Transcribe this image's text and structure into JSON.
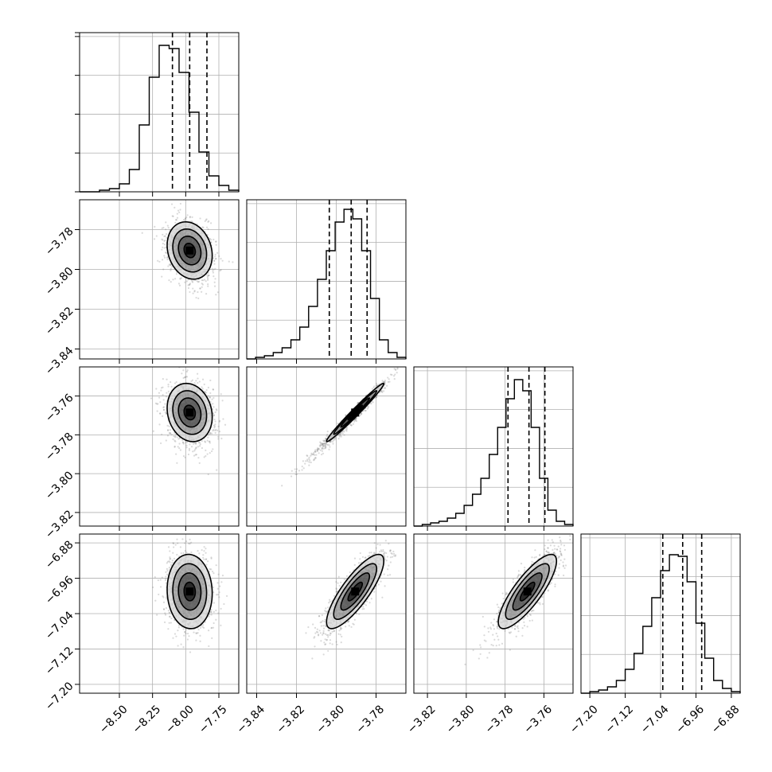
{
  "chart_data": {
    "type": "corner",
    "grid": true,
    "dimensions": [
      {
        "range": [
          -8.8,
          -7.6
        ],
        "ticks": [
          -8.5,
          -8.25,
          -8.0,
          -7.75
        ],
        "tick_labels": [
          "−8.50",
          "−8.25",
          "−8.00",
          "−7.75"
        ],
        "quantiles": [
          -8.1,
          -7.97,
          -7.84
        ],
        "hist_density": [
          0,
          0,
          0.01,
          0.02,
          0.05,
          0.14,
          0.42,
          0.72,
          0.92,
          0.9,
          0.75,
          0.5,
          0.25,
          0.1,
          0.04,
          0.01
        ]
      },
      {
        "range": [
          -3.845,
          -3.765
        ],
        "ticks": [
          -3.84,
          -3.82,
          -3.8,
          -3.78
        ],
        "tick_labels": [
          "−3.84",
          "−3.82",
          "−3.80",
          "−3.78"
        ],
        "quantiles": [
          -3.8035,
          -3.7925,
          -3.7845
        ],
        "hist_density": [
          0,
          0.01,
          0.02,
          0.04,
          0.07,
          0.12,
          0.2,
          0.33,
          0.5,
          0.68,
          0.86,
          0.94,
          0.88,
          0.68,
          0.38,
          0.12,
          0.04,
          0.01
        ]
      },
      {
        "range": [
          -3.827,
          -3.745
        ],
        "ticks": [
          -3.82,
          -3.8,
          -3.78,
          -3.76
        ],
        "tick_labels": [
          "−3.82",
          "−3.80",
          "−3.78",
          "−3.76"
        ],
        "quantiles": [
          -3.7785,
          -3.7677,
          -3.7595
        ],
        "hist_density": [
          0,
          0.01,
          0.02,
          0.03,
          0.05,
          0.08,
          0.13,
          0.2,
          0.3,
          0.45,
          0.62,
          0.8,
          0.92,
          0.85,
          0.62,
          0.3,
          0.1,
          0.03,
          0.01
        ]
      },
      {
        "range": [
          -7.22,
          -6.86
        ],
        "ticks": [
          -7.2,
          -7.12,
          -7.04,
          -6.96,
          -6.88
        ],
        "tick_labels": [
          "−7.20",
          "−7.12",
          "−7.04",
          "−6.96",
          "−6.88"
        ],
        "quantiles": [
          -7.035,
          -6.99,
          -6.947
        ],
        "hist_density": [
          0,
          0.01,
          0.02,
          0.04,
          0.08,
          0.15,
          0.25,
          0.42,
          0.6,
          0.77,
          0.87,
          0.86,
          0.7,
          0.44,
          0.22,
          0.08,
          0.03,
          0.01
        ]
      }
    ],
    "pairs": [
      {
        "row": 1,
        "col": 0,
        "center": [
          -7.97,
          -3.7905
        ],
        "sd": [
          0.085,
          0.0072
        ],
        "corr": -0.18,
        "scatter_tail": [
          -0.05,
          -0.15
        ]
      },
      {
        "row": 2,
        "col": 0,
        "center": [
          -7.97,
          -3.7685
        ],
        "sd": [
          0.085,
          0.0075
        ],
        "corr": -0.15,
        "scatter_tail": [
          -0.05,
          -0.15
        ]
      },
      {
        "row": 2,
        "col": 1,
        "center": [
          -3.7905,
          -3.7685
        ],
        "sd": [
          0.0072,
          0.0075
        ],
        "corr": 0.985,
        "scatter_tail": [
          -0.55,
          -0.55
        ]
      },
      {
        "row": 3,
        "col": 0,
        "center": [
          -7.97,
          -6.99
        ],
        "sd": [
          0.085,
          0.042
        ],
        "corr": -0.05,
        "scatter_tail": [
          0,
          0
        ]
      },
      {
        "row": 3,
        "col": 1,
        "center": [
          -3.7905,
          -6.99
        ],
        "sd": [
          0.0072,
          0.042
        ],
        "corr": 0.82,
        "scatter_tail": [
          -0.1,
          -0.05
        ]
      },
      {
        "row": 3,
        "col": 2,
        "center": [
          -3.7685,
          -6.99
        ],
        "sd": [
          0.0075,
          0.042
        ],
        "corr": 0.82,
        "scatter_tail": [
          -0.1,
          -0.05
        ]
      }
    ],
    "contour_levels_sigma": [
      0.5,
      1.0,
      1.5,
      2.0
    ],
    "colors": {
      "line": "#000000",
      "grid": "#b0b0b0",
      "scatter": "#7a7a7a",
      "density": "#000000"
    }
  }
}
